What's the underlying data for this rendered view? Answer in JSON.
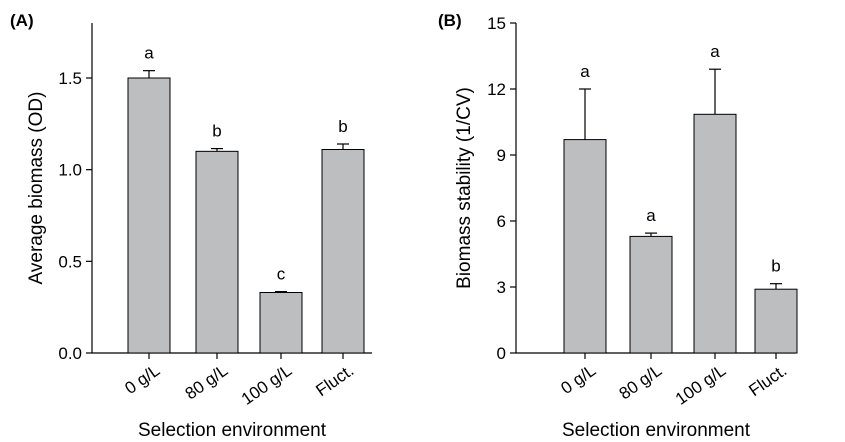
{
  "chart_data": [
    {
      "type": "bar",
      "panel_label": "(A)",
      "xlabel": "Selection environment",
      "ylabel": "Average biomass (OD)",
      "categories": [
        "0 g/L",
        "80 g/L",
        "100 g/L",
        "Fluct."
      ],
      "values": [
        1.5,
        1.1,
        0.33,
        1.11
      ],
      "error_bars": [
        0.04,
        0.015,
        0.005,
        0.03
      ],
      "significance_letters": [
        "a",
        "b",
        "c",
        "b"
      ],
      "yticks": [
        "0.0",
        "0.5",
        "1.0",
        "1.5"
      ],
      "ylim": [
        0,
        1.8
      ],
      "bar_color": "#bcbec0"
    },
    {
      "type": "bar",
      "panel_label": "(B)",
      "xlabel": "Selection environment",
      "ylabel": "Biomass stability (1/CV)",
      "categories": [
        "0 g/L",
        "80 g/L",
        "100 g/L",
        "Fluct."
      ],
      "values": [
        9.7,
        5.3,
        10.85,
        2.9
      ],
      "error_bars": [
        2.3,
        0.15,
        2.05,
        0.25
      ],
      "significance_letters": [
        "a",
        "a",
        "a",
        "b"
      ],
      "yticks": [
        "0",
        "3",
        "6",
        "9",
        "12",
        "15"
      ],
      "ylim": [
        0,
        15
      ],
      "bar_color": "#bcbec0"
    }
  ]
}
